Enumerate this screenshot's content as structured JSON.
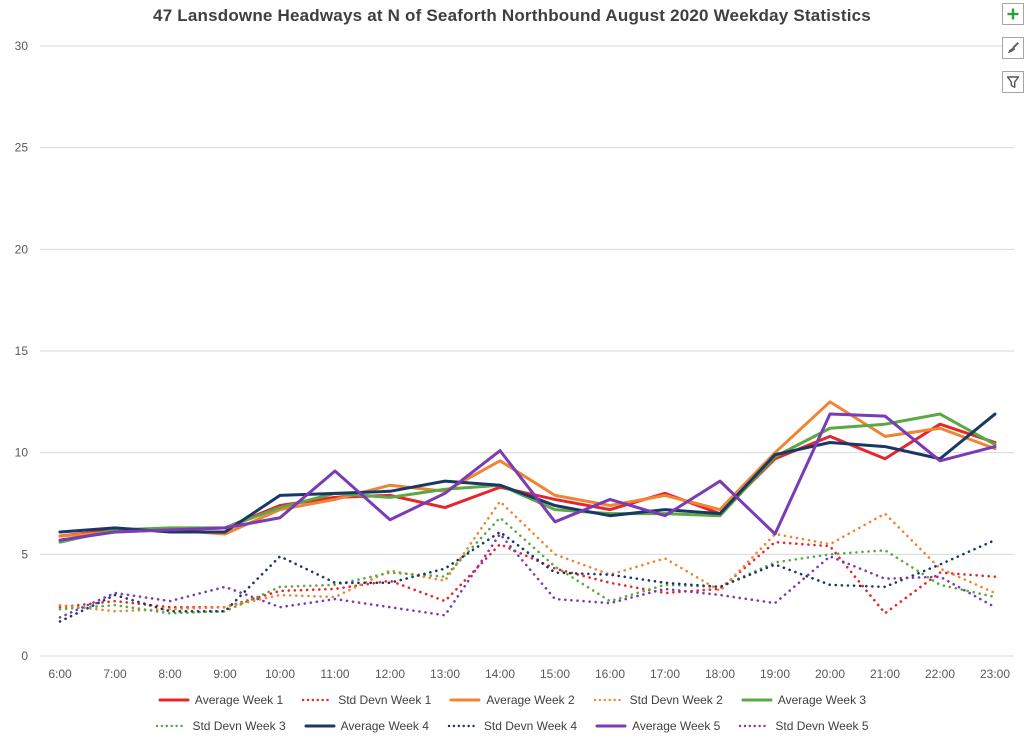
{
  "title": "47 Lansdowne Headways at N of Seaforth Northbound August 2020 Weekday Statistics",
  "toolbar": {
    "buttons": [
      {
        "icon": "plus-icon"
      },
      {
        "icon": "brush-icon"
      },
      {
        "icon": "funnel-icon"
      }
    ]
  },
  "chart_data": {
    "type": "line",
    "title": "47 Lansdowne Headways at N of Seaforth Northbound August 2020 Weekday Statistics",
    "xlabel": "",
    "ylabel": "",
    "ylim": [
      0,
      30
    ],
    "yticks": [
      0,
      5,
      10,
      15,
      20,
      25,
      30
    ],
    "grid": true,
    "legend_position": "bottom",
    "categories": [
      "6:00",
      "7:00",
      "8:00",
      "9:00",
      "10:00",
      "11:00",
      "12:00",
      "13:00",
      "14:00",
      "15:00",
      "16:00",
      "17:00",
      "18:00",
      "19:00",
      "20:00",
      "21:00",
      "22:00",
      "23:00"
    ],
    "series": [
      {
        "name": "Average Week 1",
        "color": "#E7262B",
        "style": "solid",
        "values": [
          5.9,
          6.2,
          6.2,
          6.3,
          7.4,
          7.8,
          7.9,
          7.3,
          8.3,
          7.7,
          7.2,
          8.0,
          7.0,
          9.7,
          10.8,
          9.7,
          11.4,
          10.5
        ]
      },
      {
        "name": "Std Devn Week 1",
        "color": "#E7262B",
        "style": "dotted",
        "values": [
          2.4,
          2.7,
          2.4,
          2.4,
          3.2,
          3.3,
          3.7,
          2.7,
          5.5,
          4.3,
          3.6,
          3.1,
          3.3,
          5.6,
          5.4,
          2.1,
          4.1,
          3.9
        ]
      },
      {
        "name": "Average Week 2",
        "color": "#EF8533",
        "style": "solid",
        "values": [
          5.9,
          6.1,
          6.2,
          6.0,
          7.2,
          7.7,
          8.4,
          8.1,
          9.6,
          7.9,
          7.4,
          7.9,
          7.2,
          10.0,
          12.5,
          10.8,
          11.2,
          10.2
        ]
      },
      {
        "name": "Std Devn Week 2",
        "color": "#EF8533",
        "style": "dotted",
        "values": [
          2.5,
          2.2,
          2.3,
          2.4,
          3.0,
          2.9,
          4.2,
          3.7,
          7.6,
          5.0,
          4.0,
          4.8,
          3.2,
          6.0,
          5.5,
          7.0,
          4.3,
          3.1
        ]
      },
      {
        "name": "Average Week 3",
        "color": "#5CA845",
        "style": "solid",
        "values": [
          5.6,
          6.2,
          6.3,
          6.3,
          7.3,
          8.0,
          7.8,
          8.2,
          8.4,
          7.2,
          7.0,
          7.0,
          6.9,
          9.8,
          11.2,
          11.4,
          11.9,
          10.4
        ]
      },
      {
        "name": "Std Devn Week 3",
        "color": "#5CA845",
        "style": "dotted",
        "values": [
          2.3,
          2.5,
          2.1,
          2.2,
          3.4,
          3.5,
          4.1,
          3.9,
          6.8,
          4.4,
          2.7,
          3.5,
          3.4,
          4.6,
          5.0,
          5.2,
          3.5,
          2.9
        ]
      },
      {
        "name": "Average Week 4",
        "color": "#1A3866",
        "style": "solid",
        "values": [
          6.1,
          6.3,
          6.1,
          6.1,
          7.9,
          8.0,
          8.1,
          8.6,
          8.4,
          7.4,
          6.9,
          7.2,
          7.0,
          9.9,
          10.5,
          10.3,
          9.7,
          11.9
        ]
      },
      {
        "name": "Std Devn Week 4",
        "color": "#1A3866",
        "style": "dotted",
        "values": [
          1.7,
          3.0,
          2.2,
          2.2,
          4.9,
          3.6,
          3.6,
          4.3,
          6.1,
          4.1,
          4.0,
          3.6,
          3.4,
          4.5,
          3.5,
          3.4,
          4.5,
          5.7
        ]
      },
      {
        "name": "Average Week 5",
        "color": "#7A3BB5",
        "style": "solid",
        "values": [
          5.7,
          6.1,
          6.2,
          6.3,
          6.8,
          9.1,
          6.7,
          8.0,
          10.1,
          6.6,
          7.7,
          6.9,
          8.6,
          6.0,
          11.9,
          11.8,
          9.6,
          10.3
        ]
      },
      {
        "name": "Std Devn Week 5",
        "color": "#7A3BB5",
        "style": "dotted",
        "values": [
          1.9,
          3.1,
          2.7,
          3.4,
          2.4,
          2.8,
          2.4,
          2.0,
          6.0,
          2.8,
          2.6,
          3.3,
          3.0,
          2.6,
          4.9,
          3.8,
          3.9,
          2.4
        ]
      }
    ]
  }
}
